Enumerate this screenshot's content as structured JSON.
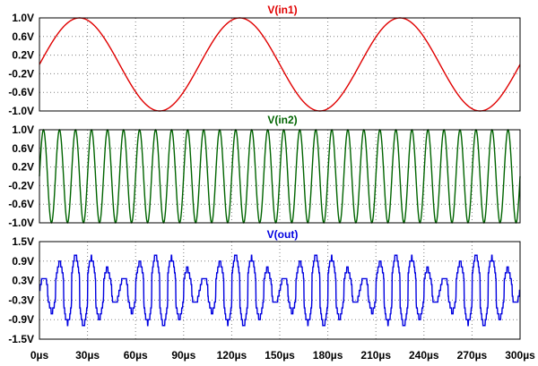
{
  "chart_data": [
    {
      "type": "line",
      "title": "V(in1)",
      "color": "#e00000",
      "function": "sine",
      "amplitude": 1.0,
      "frequency_hz": 10000,
      "phase_deg": 0,
      "xlim": [
        0,
        300
      ],
      "x_unit": "µs",
      "ylim": [
        -1.0,
        1.0
      ],
      "yticks": [
        "1.0V",
        "0.6V",
        "0.2V",
        "-0.2V",
        "-0.6V",
        "-1.0V"
      ],
      "grid": true
    },
    {
      "type": "line",
      "title": "V(in2)",
      "color": "#006400",
      "function": "sine",
      "amplitude": 1.0,
      "frequency_hz": 100000,
      "phase_deg": 0,
      "xlim": [
        0,
        300
      ],
      "x_unit": "µs",
      "ylim": [
        -1.0,
        1.0
      ],
      "yticks": [
        "1.0V",
        "0.6V",
        "0.2V",
        "-0.2V",
        "-0.6V",
        "-1.0V"
      ],
      "grid": true
    },
    {
      "type": "line",
      "title": "V(out)",
      "color": "#0000e0",
      "function": "quantized_sine_product",
      "amplitude": 1.2,
      "xlim": [
        0,
        300
      ],
      "x_unit": "µs",
      "ylim": [
        -1.5,
        1.5
      ],
      "yticks": [
        "1.5V",
        "0.9V",
        "0.3V",
        "-0.3V",
        "-0.9V",
        "-1.5V"
      ],
      "grid": true
    }
  ],
  "x_axis": {
    "ticks": [
      "0µs",
      "30µs",
      "60µs",
      "90µs",
      "120µs",
      "150µs",
      "180µs",
      "210µs",
      "240µs",
      "270µs",
      "300µs"
    ]
  }
}
